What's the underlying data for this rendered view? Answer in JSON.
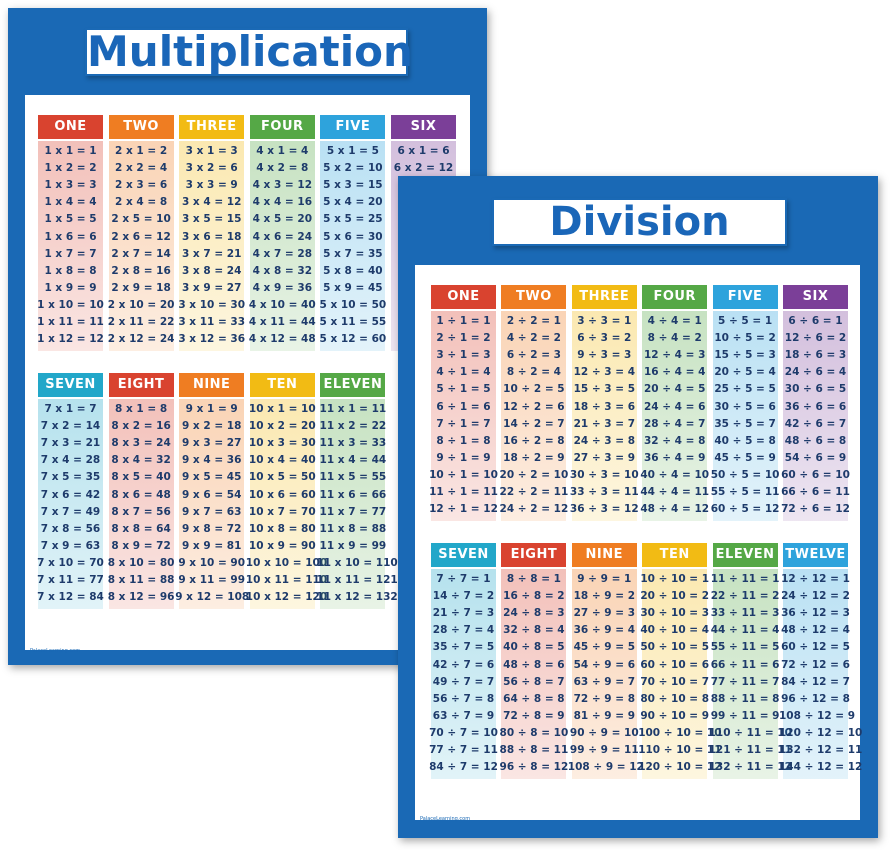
{
  "multiplication": {
    "title": "Multiplication",
    "footer": "PalaceLearning.com",
    "sections": [
      {
        "columns": [
          {
            "header": "ONE",
            "rows": [
              "1 x 1 = 1",
              "1 x 2 = 2",
              "1 x 3 = 3",
              "1 x 4 = 4",
              "1 x 5 = 5",
              "1 x 6 = 6",
              "1 x 7 = 7",
              "1 x 8 = 8",
              "1 x 9 = 9",
              "1 x 10 = 10",
              "1 x 11 = 11",
              "1 x 12 = 12"
            ]
          },
          {
            "header": "TWO",
            "rows": [
              "2 x 1 = 2",
              "2 x 2 = 4",
              "2 x 3 = 6",
              "2 x 4 = 8",
              "2 x 5 = 10",
              "2 x 6 = 12",
              "2 x 7 = 14",
              "2 x 8 = 16",
              "2 x 9 = 18",
              "2 x 10 = 20",
              "2 x 11 = 22",
              "2 x 12 = 24"
            ]
          },
          {
            "header": "THREE",
            "rows": [
              "3 x 1 = 3",
              "3 x 2 = 6",
              "3 x 3 = 9",
              "3 x 4 = 12",
              "3 x 5 = 15",
              "3 x 6 = 18",
              "3 x 7 = 21",
              "3 x 8 = 24",
              "3 x 9 = 27",
              "3 x 10 = 30",
              "3 x 11 = 33",
              "3 x 12 = 36"
            ]
          },
          {
            "header": "FOUR",
            "rows": [
              "4 x 1 = 4",
              "4 x 2 = 8",
              "4 x 3 = 12",
              "4 x 4 = 16",
              "4 x 5 = 20",
              "4 x 6 = 24",
              "4 x 7 = 28",
              "4 x 8 = 32",
              "4 x 9 = 36",
              "4 x 10 = 40",
              "4 x 11 = 44",
              "4 x 12 = 48"
            ]
          },
          {
            "header": "FIVE",
            "rows": [
              "5 x 1 = 5",
              "5 x 2 = 10",
              "5 x 3 = 15",
              "5 x 4 = 20",
              "5 x 5 = 25",
              "5 x 6 = 30",
              "5 x 7 = 35",
              "5 x 8 = 40",
              "5 x 9 = 45",
              "5 x 10 = 50",
              "5 x 11 = 55",
              "5 x 12 = 60"
            ]
          },
          {
            "header": "SIX",
            "rows": [
              "6 x 1 = 6",
              "6 x 2 = 12"
            ]
          }
        ]
      },
      {
        "columns": [
          {
            "header": "SEVEN",
            "rows": [
              "7 x 1 = 7",
              "7 x 2 = 14",
              "7 x 3 = 21",
              "7 x 4 = 28",
              "7 x 5 = 35",
              "7 x 6 = 42",
              "7 x 7 = 49",
              "7 x 8 = 56",
              "7 x 9 = 63",
              "7 x 10 = 70",
              "7 x 11 = 77",
              "7 x 12 = 84"
            ]
          },
          {
            "header": "EIGHT",
            "rows": [
              "8 x 1 = 8",
              "8 x 2 = 16",
              "8 x 3 = 24",
              "8 x 4 = 32",
              "8 x 5 = 40",
              "8 x 6 = 48",
              "8 x 7 = 56",
              "8 x 8 = 64",
              "8 x 9 = 72",
              "8 x 10 = 80",
              "8 x 11 = 88",
              "8 x 12 = 96"
            ]
          },
          {
            "header": "NINE",
            "rows": [
              "9 x 1 = 9",
              "9 x 2 = 18",
              "9 x 3 = 27",
              "9 x 4 = 36",
              "9 x 5 = 45",
              "9 x 6 = 54",
              "9 x 7 = 63",
              "9 x 8 = 72",
              "9 x 9 = 81",
              "9 x 10 = 90",
              "9 x 11 = 99",
              "9 x 12 = 108"
            ]
          },
          {
            "header": "TEN",
            "rows": [
              "10 x 1 = 10",
              "10 x 2 = 20",
              "10 x 3 = 30",
              "10 x 4 = 40",
              "10 x 5 = 50",
              "10 x 6 = 60",
              "10 x 7 = 70",
              "10 x 8 = 80",
              "10 x 9 = 90",
              "10 x 10 = 100",
              "10 x 11 = 110",
              "10 x 12 = 120"
            ]
          },
          {
            "header": "ELEVEN",
            "rows": [
              "11 x 1 = 11",
              "11 x 2 = 22",
              "11 x 3 = 33",
              "11 x 4 = 44",
              "11 x 5 = 55",
              "11 x 6 = 66",
              "11 x 7 = 77",
              "11 x 8 = 88",
              "11 x 9 = 99",
              "11 x 10 = 110",
              "11 x 11 = 121",
              "11 x 12 = 132"
            ]
          }
        ]
      }
    ]
  },
  "division": {
    "title": "Division",
    "footer": "PalaceLearning.com",
    "sections": [
      {
        "columns": [
          {
            "header": "ONE",
            "rows": [
              "1 ÷ 1 = 1",
              "2 ÷ 1 = 2",
              "3 ÷ 1 = 3",
              "4 ÷ 1 = 4",
              "5 ÷ 1 = 5",
              "6 ÷ 1 = 6",
              "7 ÷ 1 = 7",
              "8 ÷ 1 = 8",
              "9 ÷ 1 = 9",
              "10 ÷ 1 = 10",
              "11 ÷ 1 = 11",
              "12 ÷ 1 = 12"
            ]
          },
          {
            "header": "TWO",
            "rows": [
              "2 ÷ 2 = 1",
              "4 ÷ 2 = 2",
              "6 ÷ 2 = 3",
              "8 ÷ 2 = 4",
              "10 ÷ 2 = 5",
              "12 ÷ 2 = 6",
              "14 ÷ 2 = 7",
              "16 ÷ 2 = 8",
              "18 ÷ 2 = 9",
              "20 ÷ 2 = 10",
              "22 ÷ 2 = 11",
              "24 ÷ 2 = 12"
            ]
          },
          {
            "header": "THREE",
            "rows": [
              "3 ÷ 3 = 1",
              "6 ÷ 3 = 2",
              "9 ÷ 3 = 3",
              "12 ÷ 3 = 4",
              "15 ÷ 3 = 5",
              "18 ÷ 3 = 6",
              "21 ÷ 3 = 7",
              "24 ÷ 3 = 8",
              "27 ÷ 3 = 9",
              "30 ÷ 3 = 10",
              "33 ÷ 3 = 11",
              "36 ÷ 3 = 12"
            ]
          },
          {
            "header": "FOUR",
            "rows": [
              "4 ÷ 4 = 1",
              "8 ÷ 4 = 2",
              "12 ÷ 4 = 3",
              "16 ÷ 4 = 4",
              "20 ÷ 4 = 5",
              "24 ÷ 4 = 6",
              "28 ÷ 4 = 7",
              "32 ÷ 4 = 8",
              "36 ÷ 4 = 9",
              "40 ÷ 4 = 10",
              "44 ÷ 4 = 11",
              "48 ÷ 4 = 12"
            ]
          },
          {
            "header": "FIVE",
            "rows": [
              "5 ÷ 5 = 1",
              "10 ÷ 5 = 2",
              "15 ÷ 5 = 3",
              "20 ÷ 5 = 4",
              "25 ÷ 5 = 5",
              "30 ÷ 5 = 6",
              "35 ÷ 5 = 7",
              "40 ÷ 5 = 8",
              "45 ÷ 5 = 9",
              "50 ÷ 5 = 10",
              "55 ÷ 5 = 11",
              "60 ÷ 5 = 12"
            ]
          },
          {
            "header": "SIX",
            "rows": [
              "6 ÷ 6 = 1",
              "12 ÷ 6 = 2",
              "18 ÷ 6 = 3",
              "24 ÷ 6 = 4",
              "30 ÷ 6 = 5",
              "36 ÷ 6 = 6",
              "42 ÷ 6 = 7",
              "48 ÷ 6 = 8",
              "54 ÷ 6 = 9",
              "60 ÷ 6 = 10",
              "66 ÷ 6 = 11",
              "72 ÷ 6 = 12"
            ]
          }
        ]
      },
      {
        "columns": [
          {
            "header": "SEVEN",
            "rows": [
              "7 ÷ 7 = 1",
              "14 ÷ 7 = 2",
              "21 ÷ 7 = 3",
              "28 ÷ 7 = 4",
              "35 ÷ 7 = 5",
              "42 ÷ 7 = 6",
              "49 ÷ 7 = 7",
              "56 ÷ 7 = 8",
              "63 ÷ 7 = 9",
              "70 ÷ 7 = 10",
              "77 ÷ 7 = 11",
              "84 ÷ 7 = 12"
            ]
          },
          {
            "header": "EIGHT",
            "rows": [
              "8 ÷ 8 = 1",
              "16 ÷ 8 = 2",
              "24 ÷ 8 = 3",
              "32 ÷ 8 = 4",
              "40 ÷ 8 = 5",
              "48 ÷ 8 = 6",
              "56 ÷ 8 = 7",
              "64 ÷ 8 = 8",
              "72 ÷ 8 = 9",
              "80 ÷ 8 = 10",
              "88 ÷ 8 = 11",
              "96 ÷ 8 = 12"
            ]
          },
          {
            "header": "NINE",
            "rows": [
              "9 ÷ 9 = 1",
              "18 ÷ 9 = 2",
              "27 ÷ 9 = 3",
              "36 ÷ 9 = 4",
              "45 ÷ 9 = 5",
              "54 ÷ 9 = 6",
              "63 ÷ 9 = 7",
              "72 ÷ 9 = 8",
              "81 ÷ 9 = 9",
              "90 ÷ 9 = 10",
              "99 ÷ 9 = 11",
              "108 ÷ 9 = 12"
            ]
          },
          {
            "header": "TEN",
            "rows": [
              "10 ÷ 10 = 1",
              "20 ÷ 10 = 2",
              "30 ÷ 10 = 3",
              "40 ÷ 10 = 4",
              "50 ÷ 10 = 5",
              "60 ÷ 10 = 6",
              "70 ÷ 10 = 7",
              "80 ÷ 10 = 8",
              "90 ÷ 10 = 9",
              "100 ÷ 10 = 10",
              "110 ÷ 10 = 11",
              "120 ÷ 10 = 12"
            ]
          },
          {
            "header": "ELEVEN",
            "rows": [
              "11 ÷ 11 = 1",
              "22 ÷ 11 = 2",
              "33 ÷ 11 = 3",
              "44 ÷ 11 = 4",
              "55 ÷ 11 = 5",
              "66 ÷ 11 = 6",
              "77 ÷ 11 = 7",
              "88 ÷ 11 = 8",
              "99 ÷ 11 = 9",
              "110 ÷ 11 = 10",
              "121 ÷ 11 = 11",
              "132 ÷ 11 = 12"
            ]
          },
          {
            "header": "TWELVE",
            "rows": [
              "12 ÷ 12 = 1",
              "24 ÷ 12 = 2",
              "36 ÷ 12 = 3",
              "48 ÷ 12 = 4",
              "60 ÷ 12 = 5",
              "72 ÷ 12 = 6",
              "84 ÷ 12 = 7",
              "96 ÷ 12 = 8",
              "108 ÷ 12 = 9",
              "120 ÷ 12 = 10",
              "132 ÷ 12 = 11",
              "144 ÷ 12 = 12"
            ]
          }
        ]
      }
    ]
  }
}
